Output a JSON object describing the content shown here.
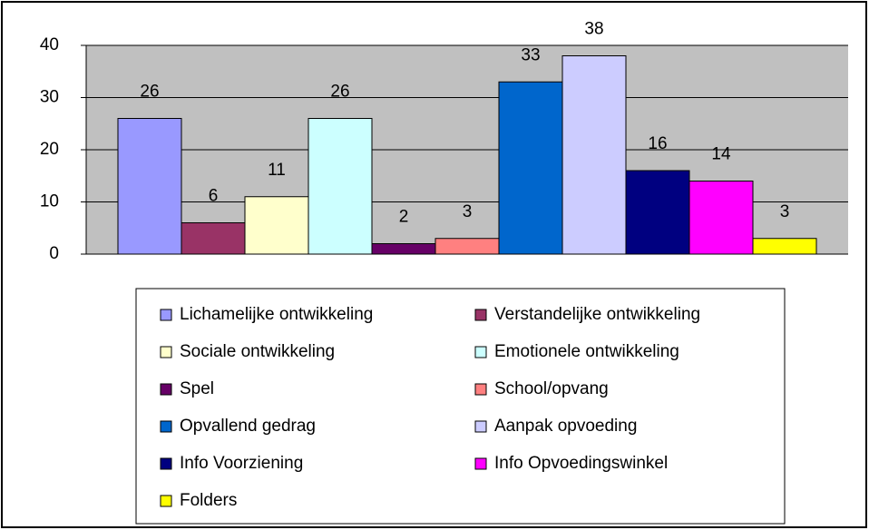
{
  "chart_data": {
    "type": "bar",
    "series": [
      {
        "name": "Lichamelijke ontwikkeling",
        "color": "#9999ff",
        "values": [
          26
        ]
      },
      {
        "name": "Verstandelijke ontwikkeling",
        "color": "#993366",
        "values": [
          6
        ]
      },
      {
        "name": "Sociale ontwikkeling",
        "color": "#ffffcc",
        "values": [
          11
        ]
      },
      {
        "name": "Emotionele ontwikkeling",
        "color": "#ccffff",
        "values": [
          26
        ]
      },
      {
        "name": "Spel",
        "color": "#660066",
        "values": [
          2
        ]
      },
      {
        "name": "School/opvang",
        "color": "#ff8080",
        "values": [
          3
        ]
      },
      {
        "name": "Opvallend gedrag",
        "color": "#0066cc",
        "values": [
          33
        ]
      },
      {
        "name": "Aanpak opvoeding",
        "color": "#ccccff",
        "values": [
          38
        ]
      },
      {
        "name": "Info Voorziening",
        "color": "#000080",
        "values": [
          16
        ]
      },
      {
        "name": "Info Opvoedingswinkel",
        "color": "#ff00ff",
        "values": [
          14
        ]
      },
      {
        "name": "Folders",
        "color": "#ffff00",
        "values": [
          3
        ]
      }
    ],
    "ylim": [
      0,
      40
    ],
    "yticks": [
      0,
      10,
      20,
      30,
      40
    ],
    "grid": true,
    "legend": "bottom"
  }
}
